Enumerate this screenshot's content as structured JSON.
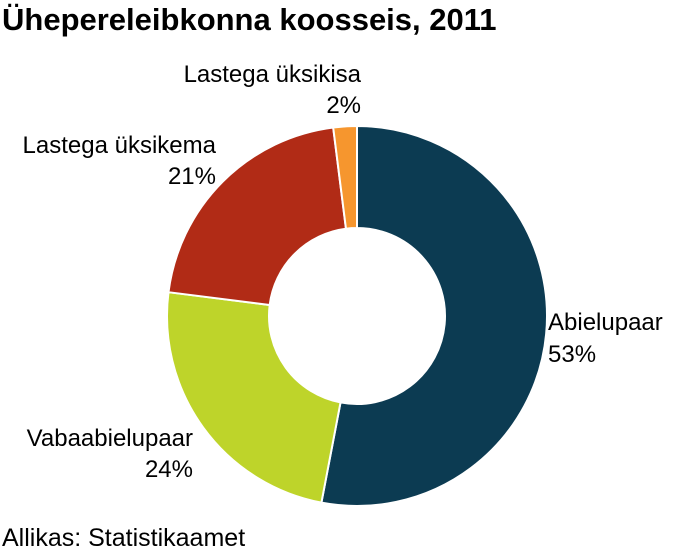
{
  "chart_data": {
    "type": "pie",
    "title": "Ühepereleibkonna koosseis, 2011",
    "donut": true,
    "slices": [
      {
        "label": "Abielupaar",
        "value": 53,
        "value_label": "53%",
        "color": "#0c3b52"
      },
      {
        "label": "Vabaabielupaar",
        "value": 24,
        "value_label": "24%",
        "color": "#bed42a"
      },
      {
        "label": "Lastega üksikema",
        "value": 21,
        "value_label": "21%",
        "color": "#b12b16"
      },
      {
        "label": "Lastega üksikisa",
        "value": 2,
        "value_label": "2%",
        "color": "#f6962e"
      }
    ],
    "source": "Allikas: Statistikaamet"
  }
}
